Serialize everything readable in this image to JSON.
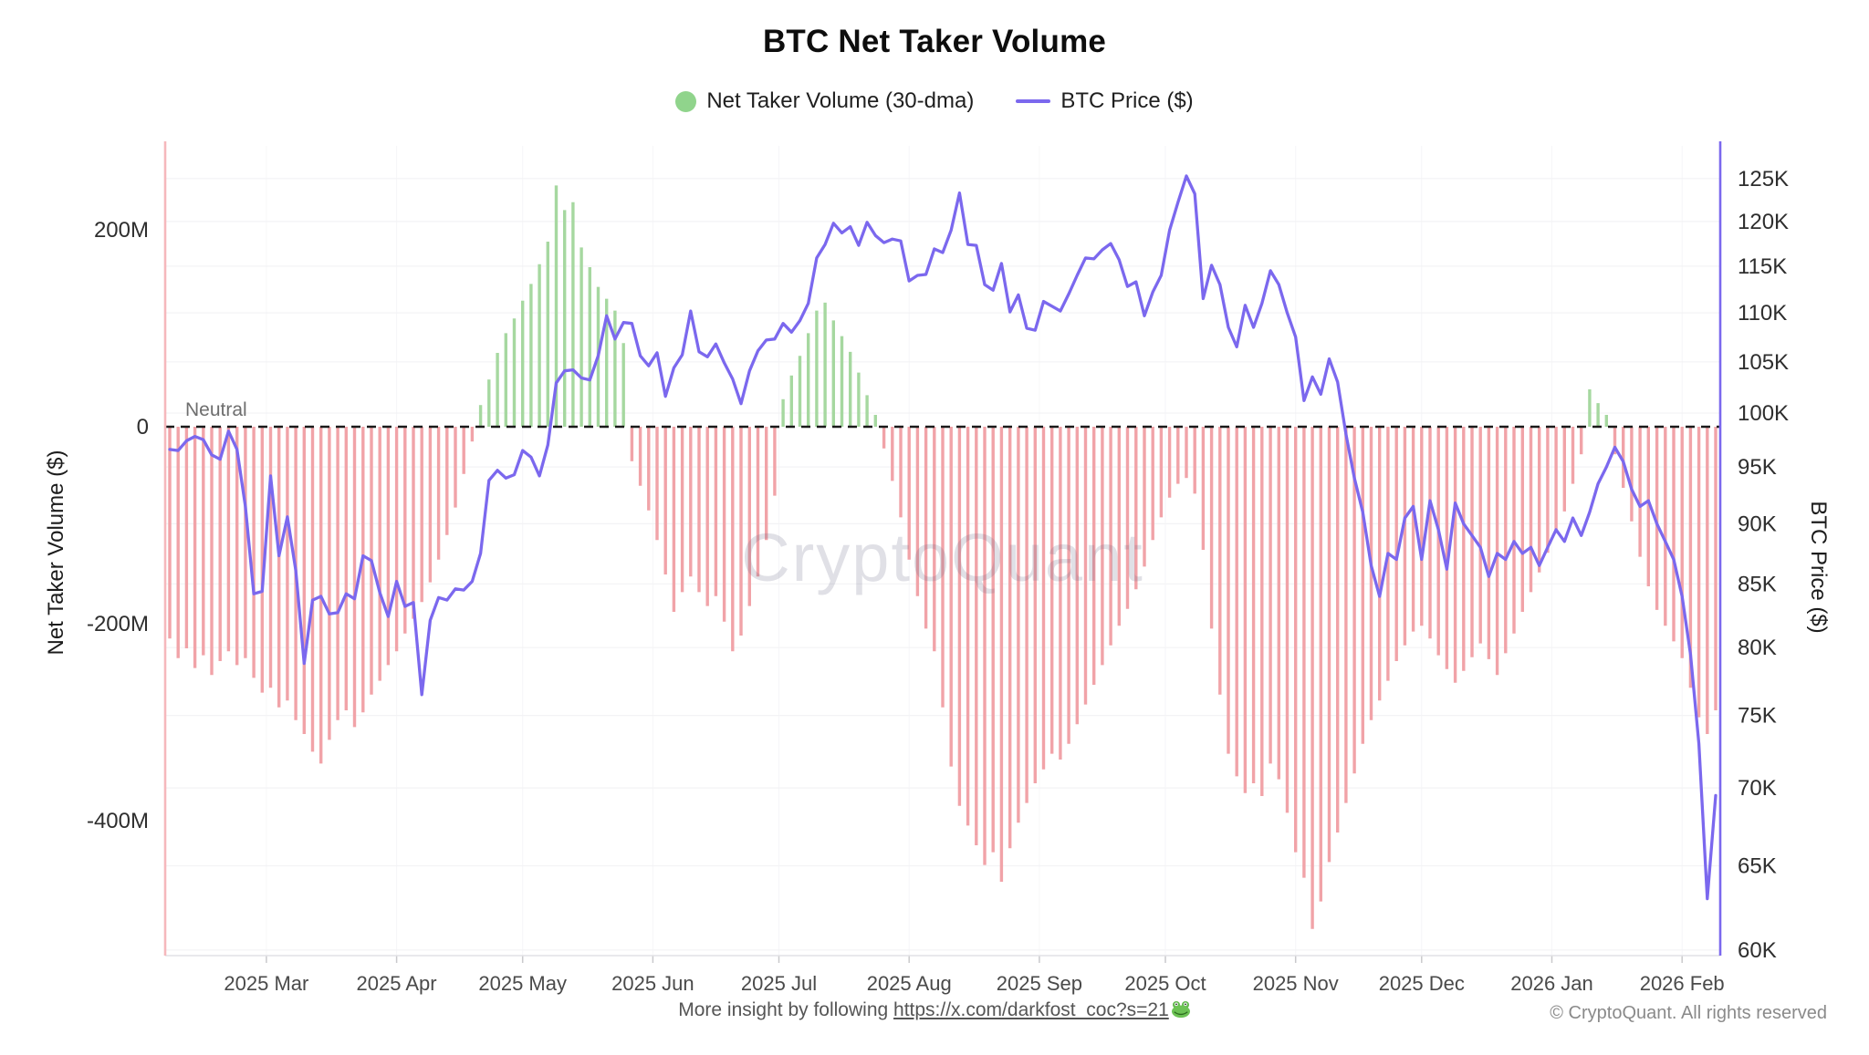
{
  "title": "BTC Net Taker Volume",
  "legend": {
    "volume_label": "Net Taker Volume (30-dma)",
    "price_label": "BTC Price ($)"
  },
  "watermark": "CryptoQuant",
  "neutral_label": "Neutral",
  "footer": {
    "prefix": "More insight by following ",
    "link_text": "https://x.com/darkfost_coc?s=21",
    "frog_icon": "frog-emoji",
    "copyright": "© CryptoQuant. All rights reserved"
  },
  "colors": {
    "bar_negative": "#F1A3A8",
    "bar_positive": "#A6D8A0",
    "legend_dot": "#90D48C",
    "price_line": "#7B68EE",
    "left_axis_line": "#F5B8BC",
    "right_axis_line": "#7B68EE",
    "neutral_line": "#1a1a1a",
    "grid_line": "#f3f3f5",
    "grid_line_vertical": "#f6f6f8",
    "tick_text": "#2e2e2e",
    "x_tick_text": "#4a4a4a",
    "watermark_fill": "rgba(98,98,132,0.20)"
  },
  "y_left": {
    "title": "Net Taker Volume ($)",
    "ticks": [
      {
        "label": "200M",
        "value": 200
      },
      {
        "label": "0",
        "value": 0
      },
      {
        "label": "-200M",
        "value": -200
      },
      {
        "label": "-400M",
        "value": -400
      }
    ]
  },
  "y_right": {
    "title": "BTC Price ($)",
    "scale": "log",
    "ticks": [
      {
        "label": "125K",
        "value": 125
      },
      {
        "label": "120K",
        "value": 120
      },
      {
        "label": "115K",
        "value": 115
      },
      {
        "label": "110K",
        "value": 110
      },
      {
        "label": "105K",
        "value": 105
      },
      {
        "label": "100K",
        "value": 100
      },
      {
        "label": "95K",
        "value": 95
      },
      {
        "label": "90K",
        "value": 90
      },
      {
        "label": "85K",
        "value": 85
      },
      {
        "label": "80K",
        "value": 80
      },
      {
        "label": "75K",
        "value": 75
      },
      {
        "label": "70K",
        "value": 70
      },
      {
        "label": "65K",
        "value": 65
      },
      {
        "label": "60K",
        "value": 60
      }
    ]
  },
  "x_axis": {
    "month_ticks": [
      {
        "label": "2025 Mar",
        "day": 23
      },
      {
        "label": "2025 Apr",
        "day": 54
      },
      {
        "label": "2025 May",
        "day": 84
      },
      {
        "label": "2025 Jun",
        "day": 115
      },
      {
        "label": "2025 Jul",
        "day": 145
      },
      {
        "label": "2025 Aug",
        "day": 176
      },
      {
        "label": "2025 Sep",
        "day": 207
      },
      {
        "label": "2025 Oct",
        "day": 237
      },
      {
        "label": "2025 Nov",
        "day": 268
      },
      {
        "label": "2025 Dec",
        "day": 298
      },
      {
        "label": "2026 Jan",
        "day": 329
      },
      {
        "label": "2026 Feb",
        "day": 360
      }
    ]
  },
  "chart_data": {
    "type": [
      "bar",
      "line"
    ],
    "title": "BTC Net Taker Volume",
    "start_date": "2025-02-06",
    "interval_days": 2,
    "x_span_days": 368,
    "neutral_line_value": 0,
    "left_axis_range_musd": [
      -537,
      285
    ],
    "right_axis_range_kusd": [
      59.7,
      128.9
    ],
    "series": [
      {
        "name": "Net Taker Volume (30-dma)",
        "axis": "left",
        "unit": "M$",
        "values": [
          -215,
          -235,
          -225,
          -245,
          -232,
          -252,
          -238,
          -228,
          -242,
          -235,
          -255,
          -270,
          -265,
          -285,
          -278,
          -298,
          -312,
          -330,
          -342,
          -318,
          -298,
          -288,
          -305,
          -290,
          -272,
          -258,
          -242,
          -228,
          -210,
          -195,
          -178,
          -158,
          -135,
          -110,
          -82,
          -48,
          -15,
          22,
          48,
          75,
          95,
          110,
          128,
          145,
          165,
          188,
          245,
          220,
          228,
          182,
          162,
          142,
          130,
          118,
          85,
          -35,
          -60,
          -85,
          -115,
          -150,
          -188,
          -168,
          -152,
          -168,
          -182,
          -172,
          -198,
          -228,
          -212,
          -182,
          -152,
          -115,
          -70,
          28,
          52,
          72,
          95,
          118,
          126,
          108,
          92,
          76,
          55,
          32,
          12,
          -22,
          -55,
          -92,
          -135,
          -172,
          -205,
          -228,
          -285,
          -345,
          -385,
          -405,
          -425,
          -445,
          -432,
          -462,
          -428,
          -402,
          -382,
          -362,
          -348,
          -332,
          -338,
          -322,
          -302,
          -282,
          -262,
          -242,
          -222,
          -202,
          -185,
          -165,
          -142,
          -115,
          -92,
          -72,
          -58,
          -52,
          -68,
          -125,
          -205,
          -272,
          -332,
          -355,
          -372,
          -362,
          -375,
          -342,
          -358,
          -392,
          -432,
          -458,
          -510,
          -482,
          -442,
          -412,
          -382,
          -352,
          -322,
          -298,
          -278,
          -258,
          -238,
          -222,
          -208,
          -202,
          -215,
          -232,
          -246,
          -260,
          -248,
          -234,
          -220,
          -236,
          -252,
          -230,
          -210,
          -188,
          -168,
          -148,
          -128,
          -108,
          -86,
          -58,
          -28,
          38,
          24,
          12,
          -28,
          -62,
          -96,
          -132,
          -162,
          -186,
          -202,
          -218,
          -235,
          -265,
          -295,
          -312,
          -288
        ]
      },
      {
        "name": "BTC Price ($)",
        "axis": "right",
        "unit": "K$",
        "values": [
          96.6,
          96.5,
          97.4,
          97.8,
          97.5,
          96.1,
          95.7,
          98.3,
          96.6,
          91.5,
          84.2,
          84.4,
          94.2,
          87.3,
          90.6,
          86.1,
          78.8,
          83.7,
          84.0,
          82.6,
          82.7,
          84.2,
          83.8,
          87.3,
          86.9,
          84.3,
          82.4,
          85.2,
          83.2,
          83.5,
          76.5,
          82.1,
          83.9,
          83.7,
          84.6,
          84.5,
          85.2,
          87.5,
          93.8,
          94.7,
          94.0,
          94.3,
          96.5,
          95.9,
          94.2,
          97.0,
          102.9,
          104.1,
          104.2,
          103.4,
          103.2,
          105.6,
          109.7,
          107.3,
          109.0,
          108.9,
          105.6,
          104.6,
          105.9,
          101.6,
          104.4,
          105.7,
          110.2,
          106.0,
          105.5,
          106.8,
          104.9,
          103.3,
          100.9,
          104.1,
          106.1,
          107.2,
          107.3,
          108.9,
          108.0,
          109.2,
          111.0,
          115.9,
          117.4,
          119.8,
          118.7,
          119.4,
          117.3,
          119.9,
          118.4,
          117.6,
          118.0,
          117.8,
          113.4,
          114.0,
          114.1,
          116.9,
          116.5,
          119.0,
          123.3,
          117.4,
          117.3,
          113.0,
          112.4,
          115.3,
          110.1,
          111.9,
          108.4,
          108.2,
          111.2,
          110.7,
          110.2,
          112.0,
          114.0,
          115.9,
          115.8,
          116.8,
          117.5,
          115.7,
          112.8,
          113.3,
          109.7,
          112.2,
          114.0,
          119.0,
          122.2,
          125.3,
          123.2,
          111.5,
          115.1,
          113.0,
          108.5,
          106.5,
          110.8,
          108.5,
          111.0,
          114.5,
          113.0,
          110.0,
          107.5,
          101.2,
          103.5,
          101.8,
          105.3,
          103.0,
          98.0,
          94.0,
          91.0,
          86.5,
          84.0,
          87.5,
          87.0,
          90.5,
          91.5,
          87.0,
          92.0,
          89.5,
          86.2,
          91.8,
          90.0,
          89.0,
          88.0,
          85.6,
          87.5,
          87.0,
          88.5,
          87.5,
          88.0,
          86.5,
          88.0,
          89.5,
          88.5,
          90.5,
          89.0,
          91.0,
          93.5,
          95.0,
          96.8,
          95.5,
          93.0,
          91.5,
          92.0,
          90.0,
          88.5,
          87.0,
          84.0,
          79.5,
          73.0,
          63.0,
          69.5
        ]
      }
    ]
  }
}
